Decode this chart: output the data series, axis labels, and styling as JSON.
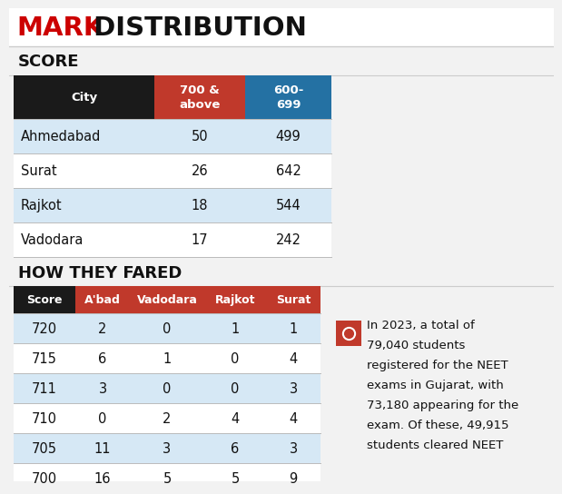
{
  "title_mark": "MARK",
  "title_rest": " DISTRIBUTION",
  "section1_title": "SCORE",
  "score_table": {
    "headers": [
      "City",
      "700 &\nabove",
      "600-\n699"
    ],
    "rows": [
      [
        "Ahmedabad",
        "50",
        "499"
      ],
      [
        "Surat",
        "26",
        "642"
      ],
      [
        "Rajkot",
        "18",
        "544"
      ],
      [
        "Vadodara",
        "17",
        "242"
      ]
    ]
  },
  "section2_title": "HOW THEY FARED",
  "fared_table": {
    "headers": [
      "Score",
      "A'bad",
      "Vadodara",
      "Rajkot",
      "Surat"
    ],
    "rows": [
      [
        "720",
        "2",
        "0",
        "1",
        "1"
      ],
      [
        "715",
        "6",
        "1",
        "0",
        "4"
      ],
      [
        "711",
        "3",
        "0",
        "0",
        "3"
      ],
      [
        "710",
        "0",
        "2",
        "4",
        "4"
      ],
      [
        "705",
        "11",
        "3",
        "6",
        "3"
      ],
      [
        "700",
        "16",
        "5",
        "5",
        "9"
      ]
    ]
  },
  "annotation_line1": "In 2023, a total of",
  "annotation_line2": "79,040 students",
  "annotation_line3": "registered for the NEET",
  "annotation_line4": "exams in Gujarat, with",
  "annotation_line5": "73,180 appearing for the",
  "annotation_line6": "exam. Of these, 49,915",
  "annotation_line7": "students cleared NEET",
  "bg_color": "#f2f2f2",
  "title_bg": "#ffffff",
  "score_section_bg": "#f2f2f2",
  "table_bg_light": "#d6e8f5",
  "table_bg_white": "#ffffff",
  "header_bg_dark": "#1a1a1a",
  "header_bg_red": "#c0392b",
  "header_bg_blue": "#2471a3",
  "divider_color": "#bbbbbb",
  "text_dark": "#111111"
}
